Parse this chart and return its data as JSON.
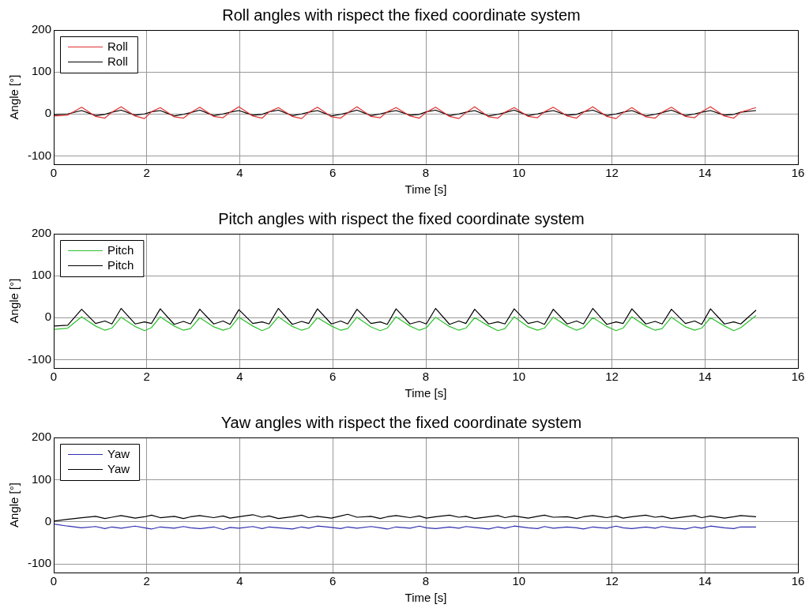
{
  "chart_data": [
    {
      "type": "line",
      "title": "Roll angles with rispect the fixed coordinate system",
      "xlabel": "Time [s]",
      "ylabel": "Angle [°]",
      "x": [
        0,
        0.3,
        0.6,
        0.9,
        1.1,
        1.25,
        1.45,
        1.75,
        1.95,
        2.1,
        2.29,
        2.59,
        2.79,
        2.94,
        3.14,
        3.44,
        3.64,
        3.79,
        3.98,
        4.28,
        4.48,
        4.63,
        4.83,
        5.13,
        5.33,
        5.48,
        5.67,
        5.97,
        6.17,
        6.32,
        6.52,
        6.82,
        7.02,
        7.17,
        7.36,
        7.66,
        7.86,
        8.01,
        8.21,
        8.51,
        8.71,
        8.86,
        9.05,
        9.35,
        9.55,
        9.7,
        9.9,
        10.2,
        10.4,
        10.55,
        10.74,
        11.04,
        11.24,
        11.39,
        11.59,
        11.89,
        12.09,
        12.24,
        12.43,
        12.73,
        12.93,
        13.08,
        13.28,
        13.58,
        13.78,
        13.93,
        14.12,
        14.42,
        14.62,
        14.77,
        15.1
      ],
      "series": [
        {
          "name": "Roll",
          "color": "#e03030",
          "values": [
            -5,
            -3,
            16,
            -6,
            -10,
            4,
            17,
            -5,
            -11,
            5,
            15,
            -7,
            -10,
            3,
            16,
            -6,
            -9,
            4,
            17,
            -5,
            -10,
            5,
            15,
            -6,
            -11,
            4,
            16,
            -7,
            -10,
            3,
            17,
            -6,
            -9,
            5,
            15,
            -5,
            -10,
            4,
            16,
            -6,
            -11,
            3,
            17,
            -7,
            -10,
            4,
            15,
            -6,
            -9,
            5,
            16,
            -5,
            -10,
            4,
            17,
            -6,
            -11,
            3,
            15,
            -7,
            -10,
            4,
            16,
            -6,
            -9,
            5,
            17,
            -5,
            -10,
            4,
            15
          ]
        },
        {
          "name": "Roll",
          "color": "#000000",
          "values": [
            -2,
            0,
            8,
            -4,
            -1,
            4,
            9,
            -3,
            0,
            5,
            8,
            -5,
            -1,
            3,
            9,
            -4,
            0,
            4,
            8,
            -3,
            -1,
            5,
            9,
            -4,
            0,
            4,
            8,
            -5,
            -1,
            3,
            9,
            -4,
            0,
            4,
            8,
            -3,
            -1,
            5,
            9,
            -4,
            0,
            4,
            8,
            -5,
            -1,
            3,
            9,
            -4,
            0,
            4,
            8,
            -3,
            -1,
            5,
            9,
            -4,
            0,
            4,
            8,
            -5,
            -1,
            3,
            9,
            -4,
            0,
            4,
            8,
            -3,
            -1,
            4,
            8
          ]
        }
      ],
      "xlim": [
        0,
        16
      ],
      "xticks": [
        0,
        2,
        4,
        6,
        8,
        10,
        12,
        14,
        16
      ],
      "ylim": [
        -120,
        200
      ],
      "yticks": [
        -100,
        0,
        100,
        200
      ],
      "grid": true,
      "legend": "top left",
      "marker": "none",
      "line_style": "solid"
    },
    {
      "type": "line",
      "title": "Pitch angles with rispect the fixed coordinate system",
      "xlabel": "Time [s]",
      "ylabel": "Angle [°]",
      "x": [
        0,
        0.3,
        0.6,
        0.9,
        1.1,
        1.25,
        1.45,
        1.75,
        1.95,
        2.1,
        2.29,
        2.59,
        2.79,
        2.94,
        3.14,
        3.44,
        3.64,
        3.79,
        3.98,
        4.28,
        4.48,
        4.63,
        4.83,
        5.13,
        5.33,
        5.48,
        5.67,
        5.97,
        6.17,
        6.32,
        6.52,
        6.82,
        7.02,
        7.17,
        7.36,
        7.66,
        7.86,
        8.01,
        8.21,
        8.51,
        8.71,
        8.86,
        9.05,
        9.35,
        9.55,
        9.7,
        9.9,
        10.2,
        10.4,
        10.55,
        10.74,
        11.04,
        11.24,
        11.39,
        11.59,
        11.89,
        12.09,
        12.24,
        12.43,
        12.73,
        12.93,
        13.08,
        13.28,
        13.58,
        13.78,
        13.93,
        14.12,
        14.42,
        14.62,
        14.77,
        15.1
      ],
      "series": [
        {
          "name": "Pitch",
          "color": "#30c030",
          "values": [
            -28,
            -25,
            2,
            -20,
            -30,
            -25,
            1,
            -21,
            -31,
            -24,
            2,
            -20,
            -30,
            -26,
            0,
            -22,
            -30,
            -25,
            1,
            -20,
            -31,
            -24,
            2,
            -21,
            -30,
            -25,
            0,
            -20,
            -30,
            -26,
            1,
            -22,
            -31,
            -25,
            2,
            -20,
            -30,
            -24,
            1,
            -21,
            -30,
            -25,
            0,
            -20,
            -31,
            -26,
            2,
            -22,
            -30,
            -25,
            1,
            -20,
            -30,
            -24,
            0,
            -21,
            -31,
            -25,
            2,
            -20,
            -30,
            -26,
            1,
            -22,
            -30,
            -25,
            0,
            -20,
            -31,
            -24,
            5
          ]
        },
        {
          "name": "Pitch",
          "color": "#000000",
          "values": [
            -20,
            -18,
            20,
            -14,
            -8,
            -15,
            22,
            -15,
            -10,
            -14,
            21,
            -16,
            -9,
            -15,
            20,
            -15,
            -8,
            -16,
            19,
            -14,
            -10,
            -15,
            22,
            -16,
            -9,
            -14,
            21,
            -15,
            -8,
            -15,
            20,
            -14,
            -10,
            -16,
            21,
            -15,
            -9,
            -15,
            22,
            -16,
            -8,
            -14,
            20,
            -15,
            -10,
            -15,
            21,
            -14,
            -9,
            -16,
            20,
            -15,
            -8,
            -15,
            22,
            -16,
            -10,
            -14,
            21,
            -15,
            -9,
            -15,
            20,
            -14,
            -8,
            -16,
            21,
            -15,
            -10,
            -15,
            18
          ]
        }
      ],
      "xlim": [
        0,
        16
      ],
      "xticks": [
        0,
        2,
        4,
        6,
        8,
        10,
        12,
        14,
        16
      ],
      "ylim": [
        -120,
        200
      ],
      "yticks": [
        -100,
        0,
        100,
        200
      ],
      "grid": true,
      "legend": "top left",
      "marker": "none",
      "line_style": "solid"
    },
    {
      "type": "line",
      "title": "Yaw angles with rispect the fixed coordinate system",
      "xlabel": "Time [s]",
      "ylabel": "Angle [°]",
      "x": [
        0,
        0.3,
        0.6,
        0.9,
        1.1,
        1.25,
        1.45,
        1.75,
        1.95,
        2.1,
        2.29,
        2.59,
        2.79,
        2.94,
        3.14,
        3.44,
        3.64,
        3.79,
        3.98,
        4.28,
        4.48,
        4.63,
        4.83,
        5.13,
        5.33,
        5.48,
        5.67,
        5.97,
        6.17,
        6.32,
        6.52,
        6.82,
        7.02,
        7.17,
        7.36,
        7.66,
        7.86,
        8.01,
        8.21,
        8.51,
        8.71,
        8.86,
        9.05,
        9.35,
        9.55,
        9.7,
        9.9,
        10.2,
        10.4,
        10.55,
        10.74,
        11.04,
        11.24,
        11.39,
        11.59,
        11.89,
        12.09,
        12.24,
        12.43,
        12.73,
        12.93,
        13.08,
        13.28,
        13.58,
        13.78,
        13.93,
        14.12,
        14.42,
        14.62,
        14.77,
        15.1
      ],
      "series": [
        {
          "name": "Yaw",
          "color": "#3030b0",
          "values": [
            -5,
            -10,
            -14,
            -11,
            -16,
            -12,
            -15,
            -10,
            -14,
            -17,
            -12,
            -15,
            -11,
            -14,
            -16,
            -12,
            -18,
            -13,
            -15,
            -11,
            -16,
            -12,
            -14,
            -17,
            -12,
            -15,
            -10,
            -13,
            -16,
            -12,
            -15,
            -11,
            -14,
            -17,
            -12,
            -15,
            -10,
            -14,
            -16,
            -12,
            -15,
            -11,
            -13,
            -17,
            -12,
            -15,
            -10,
            -14,
            -16,
            -11,
            -15,
            -12,
            -14,
            -17,
            -12,
            -15,
            -10,
            -14,
            -16,
            -12,
            -15,
            -11,
            -14,
            -17,
            -12,
            -15,
            -10,
            -14,
            -16,
            -12,
            -12
          ]
        },
        {
          "name": "Yaw",
          "color": "#000000",
          "values": [
            2,
            6,
            10,
            13,
            8,
            11,
            15,
            9,
            12,
            16,
            10,
            13,
            8,
            12,
            15,
            10,
            14,
            9,
            12,
            17,
            11,
            14,
            8,
            12,
            16,
            10,
            13,
            9,
            14,
            18,
            11,
            13,
            8,
            12,
            15,
            10,
            14,
            9,
            12,
            16,
            11,
            13,
            8,
            12,
            15,
            10,
            14,
            9,
            13,
            16,
            11,
            12,
            8,
            12,
            15,
            10,
            14,
            9,
            12,
            16,
            11,
            13,
            8,
            12,
            15,
            10,
            14,
            9,
            12,
            15,
            12
          ]
        }
      ],
      "xlim": [
        0,
        16
      ],
      "xticks": [
        0,
        2,
        4,
        6,
        8,
        10,
        12,
        14,
        16
      ],
      "ylim": [
        -120,
        200
      ],
      "yticks": [
        -100,
        0,
        100,
        200
      ],
      "grid": true,
      "legend": "top left",
      "marker": "none",
      "line_style": "solid"
    }
  ]
}
